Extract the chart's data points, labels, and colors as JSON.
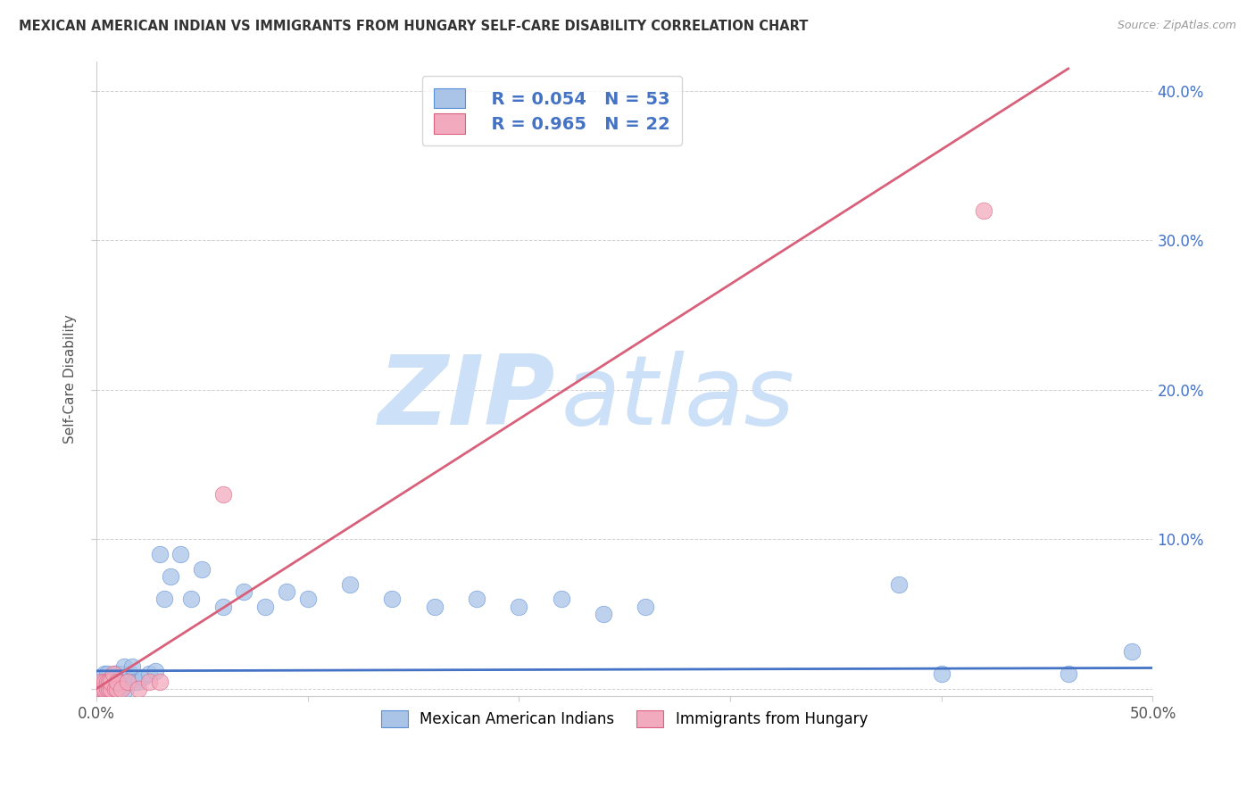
{
  "title": "MEXICAN AMERICAN INDIAN VS IMMIGRANTS FROM HUNGARY SELF-CARE DISABILITY CORRELATION CHART",
  "source": "Source: ZipAtlas.com",
  "ylabel": "Self-Care Disability",
  "xlim": [
    0.0,
    0.5
  ],
  "ylim": [
    -0.005,
    0.42
  ],
  "xticks": [
    0.0,
    0.1,
    0.2,
    0.3,
    0.4,
    0.5
  ],
  "yticks": [
    0.0,
    0.1,
    0.2,
    0.3,
    0.4
  ],
  "xticklabels": [
    "0.0%",
    "",
    "",
    "",
    "",
    "50.0%"
  ],
  "yticklabels_right": [
    "",
    "10.0%",
    "20.0%",
    "30.0%",
    "40.0%"
  ],
  "blue_R": 0.054,
  "blue_N": 53,
  "pink_R": 0.965,
  "pink_N": 22,
  "blue_color": "#aac4e8",
  "pink_color": "#f2aabe",
  "blue_edge_color": "#5b8dd4",
  "pink_edge_color": "#d96080",
  "blue_line_color": "#4472c4",
  "pink_line_color": "#d9607a",
  "legend_label_blue": "Mexican American Indians",
  "legend_label_pink": "Immigrants from Hungary",
  "watermark_zip": "ZIP",
  "watermark_atlas": "atlas",
  "watermark_color": "#cce0f8",
  "blue_line_x": [
    0.0,
    0.5
  ],
  "blue_line_y": [
    0.012,
    0.014
  ],
  "pink_line_x": [
    0.0,
    0.46
  ],
  "pink_line_y": [
    0.0,
    0.415
  ],
  "blue_scatter_x": [
    0.002,
    0.003,
    0.004,
    0.004,
    0.005,
    0.005,
    0.005,
    0.006,
    0.006,
    0.007,
    0.007,
    0.008,
    0.008,
    0.009,
    0.009,
    0.01,
    0.01,
    0.011,
    0.012,
    0.012,
    0.013,
    0.014,
    0.015,
    0.016,
    0.017,
    0.018,
    0.02,
    0.022,
    0.025,
    0.028,
    0.03,
    0.032,
    0.035,
    0.04,
    0.045,
    0.05,
    0.06,
    0.07,
    0.08,
    0.09,
    0.1,
    0.12,
    0.14,
    0.16,
    0.18,
    0.2,
    0.22,
    0.24,
    0.26,
    0.38,
    0.4,
    0.46,
    0.49
  ],
  "blue_scatter_y": [
    0.0,
    0.005,
    0.0,
    0.01,
    0.0,
    0.005,
    0.01,
    0.0,
    0.005,
    0.0,
    0.005,
    0.0,
    0.005,
    0.01,
    0.0,
    0.005,
    0.01,
    0.0,
    0.005,
    0.01,
    0.015,
    0.0,
    0.005,
    0.01,
    0.015,
    0.005,
    0.005,
    0.008,
    0.01,
    0.012,
    0.09,
    0.06,
    0.075,
    0.09,
    0.06,
    0.08,
    0.055,
    0.065,
    0.055,
    0.065,
    0.06,
    0.07,
    0.06,
    0.055,
    0.06,
    0.055,
    0.06,
    0.05,
    0.055,
    0.07,
    0.01,
    0.01,
    0.025
  ],
  "pink_scatter_x": [
    0.002,
    0.002,
    0.003,
    0.004,
    0.004,
    0.005,
    0.005,
    0.006,
    0.006,
    0.007,
    0.007,
    0.008,
    0.009,
    0.01,
    0.01,
    0.012,
    0.015,
    0.02,
    0.025,
    0.03,
    0.06,
    0.42
  ],
  "pink_scatter_y": [
    0.0,
    0.005,
    0.0,
    0.0,
    0.005,
    0.0,
    0.005,
    0.0,
    0.005,
    0.0,
    0.005,
    0.01,
    0.0,
    0.0,
    0.005,
    0.0,
    0.005,
    0.0,
    0.005,
    0.005,
    0.13,
    0.32
  ]
}
